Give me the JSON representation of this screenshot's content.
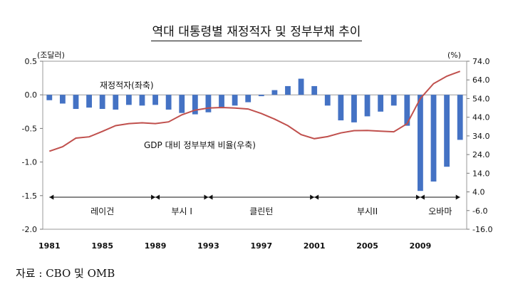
{
  "title": "역대 대통령별 재정적자 및 정부부채 추이",
  "source": "자료 : CBO 및 OMB",
  "chart_data": {
    "type": "bar+line",
    "left_axis": {
      "unit": "(조달러)",
      "ylim": [
        -2.0,
        0.5
      ],
      "ticks": [
        "0.5",
        "0.0",
        "-0.5",
        "-1.0",
        "-1.5",
        "-2.0"
      ]
    },
    "right_axis": {
      "unit": "(%)",
      "ylim": [
        -16.0,
        74.0
      ],
      "ticks": [
        "74.0",
        "64.0",
        "54.0",
        "44.0",
        "34.0",
        "24.0",
        "14.0",
        "4.0",
        "-6.0",
        "-16.0"
      ]
    },
    "x": [
      1981,
      1982,
      1983,
      1984,
      1985,
      1986,
      1987,
      1988,
      1989,
      1990,
      1991,
      1992,
      1993,
      1994,
      1995,
      1996,
      1997,
      1998,
      1999,
      2000,
      2001,
      2002,
      2003,
      2004,
      2005,
      2006,
      2007,
      2008,
      2009,
      2010,
      2011,
      2012
    ],
    "x_tick_labels": [
      "1981",
      "1985",
      "1989",
      "1993",
      "1997",
      "2001",
      "2005",
      "2009"
    ],
    "grid": false,
    "series": [
      {
        "name": "재정적자(좌축)",
        "type": "bar",
        "axis": "left",
        "color": "#4472C4",
        "values": [
          -0.08,
          -0.13,
          -0.21,
          -0.19,
          -0.21,
          -0.22,
          -0.15,
          -0.16,
          -0.15,
          -0.22,
          -0.27,
          -0.29,
          -0.26,
          -0.2,
          -0.16,
          -0.11,
          -0.02,
          0.07,
          0.13,
          0.24,
          0.13,
          -0.16,
          -0.38,
          -0.41,
          -0.32,
          -0.25,
          -0.16,
          -0.46,
          -1.43,
          -1.29,
          -1.07,
          -0.67
        ]
      },
      {
        "name": "GDP 대비 정부부채 비율(우축)",
        "type": "line",
        "axis": "right",
        "color": "#C0504D",
        "values": [
          25.8,
          28.2,
          32.8,
          33.5,
          36.4,
          39.5,
          40.6,
          41.0,
          40.6,
          41.5,
          45.3,
          47.8,
          48.9,
          49.2,
          48.9,
          48.4,
          46.0,
          43.0,
          39.5,
          34.7,
          32.5,
          33.6,
          35.6,
          36.8,
          36.9,
          36.5,
          36.2,
          40.5,
          54.0,
          62.0,
          66.0,
          68.6
        ]
      }
    ],
    "periods": [
      {
        "label": "레이건",
        "start": 1981,
        "end": 1989
      },
      {
        "label": "부시 I",
        "start": 1989,
        "end": 1993
      },
      {
        "label": "클린턴",
        "start": 1993,
        "end": 2001
      },
      {
        "label": "부시II",
        "start": 2001,
        "end": 2009
      },
      {
        "label": "오바마",
        "start": 2009,
        "end": 2012
      }
    ]
  }
}
